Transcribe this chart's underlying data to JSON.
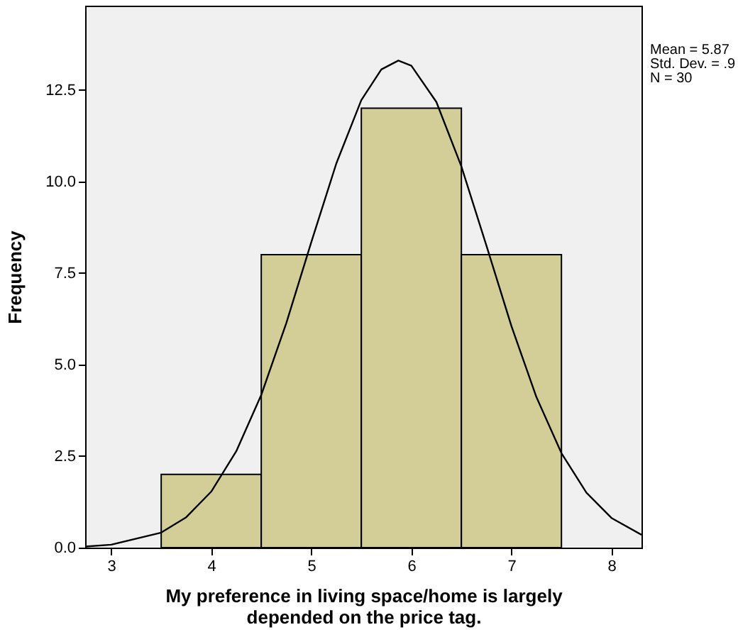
{
  "chart_data": {
    "type": "histogram",
    "xlabel": "My preference in living space/home is largely\ndepended on the price tag.",
    "ylabel": "Frequency",
    "bins": [
      3.5,
      4.5,
      5.5,
      6.5,
      7.5
    ],
    "values": [
      2,
      8,
      12,
      8
    ],
    "color": "#d3ce98",
    "series": [
      {
        "type": "line",
        "color": "#000000",
        "x": [
          2.74,
          3.0,
          3.5,
          3.75,
          4.0,
          4.25,
          4.5,
          4.75,
          5.0,
          5.25,
          5.5,
          5.7,
          5.87,
          6.0,
          6.25,
          6.5,
          6.75,
          7.0,
          7.25,
          7.5,
          7.75,
          8.0,
          8.3
        ],
        "values": [
          0.03,
          0.08,
          0.41,
          0.83,
          1.53,
          2.63,
          4.17,
          6.13,
          8.34,
          10.49,
          12.22,
          13.06,
          13.3,
          13.16,
          12.17,
          10.41,
          8.25,
          6.05,
          4.11,
          2.58,
          1.5,
          0.81,
          0.35
        ]
      }
    ],
    "xlim": [
      2.74,
      8.3
    ],
    "xticks": [
      3,
      4,
      5,
      6,
      7,
      8
    ],
    "ylim": [
      0,
      14.8
    ],
    "yticks": [
      {
        "value": 0,
        "label": "0.0"
      },
      {
        "value": 2.5,
        "label": "2.5"
      },
      {
        "value": 5,
        "label": "5.0"
      },
      {
        "value": 7.5,
        "label": "7.5"
      },
      {
        "value": 10,
        "label": "10.0"
      },
      {
        "value": 12.5,
        "label": "12.5"
      }
    ],
    "grid": false,
    "annotations": [
      "Mean = 5.87",
      "Std. Dev. = .9",
      "N = 30"
    ]
  }
}
